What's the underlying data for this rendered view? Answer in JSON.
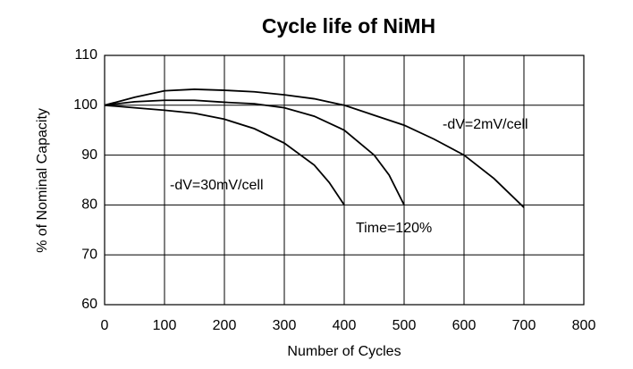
{
  "chart_data": {
    "type": "line",
    "title": "Cycle life of NiMH",
    "xlabel": "Number of Cycles",
    "ylabel": "% of Nominal Capacity",
    "xlim": [
      0,
      800
    ],
    "xticks": [
      0,
      100,
      200,
      300,
      400,
      500,
      600,
      700,
      800
    ],
    "ylim": [
      60,
      110
    ],
    "yticks": [
      60,
      70,
      80,
      90,
      100,
      110
    ],
    "grid": true,
    "series": [
      {
        "name": "-dV=2mV/cell",
        "color": "#000000",
        "x": [
          0,
          50,
          100,
          150,
          200,
          250,
          300,
          350,
          400,
          450,
          500,
          550,
          600,
          650,
          700
        ],
        "values": [
          100,
          101.6,
          102.9,
          103.2,
          103,
          102.7,
          102.1,
          101.3,
          100,
          98,
          96,
          93.2,
          90,
          85.3,
          79.5
        ]
      },
      {
        "name": "Time=120%",
        "color": "#000000",
        "x": [
          0,
          50,
          100,
          150,
          200,
          250,
          300,
          350,
          400,
          450,
          475,
          500
        ],
        "values": [
          100,
          100.7,
          101,
          101,
          100.6,
          100.3,
          99.5,
          97.8,
          95,
          90,
          86,
          80
        ]
      },
      {
        "name": "-dV=30mV/cell",
        "color": "#000000",
        "x": [
          0,
          50,
          100,
          150,
          200,
          250,
          300,
          350,
          375,
          400
        ],
        "values": [
          100,
          99.5,
          99,
          98.4,
          97.2,
          95.3,
          92.4,
          88,
          84.5,
          80
        ]
      }
    ]
  }
}
